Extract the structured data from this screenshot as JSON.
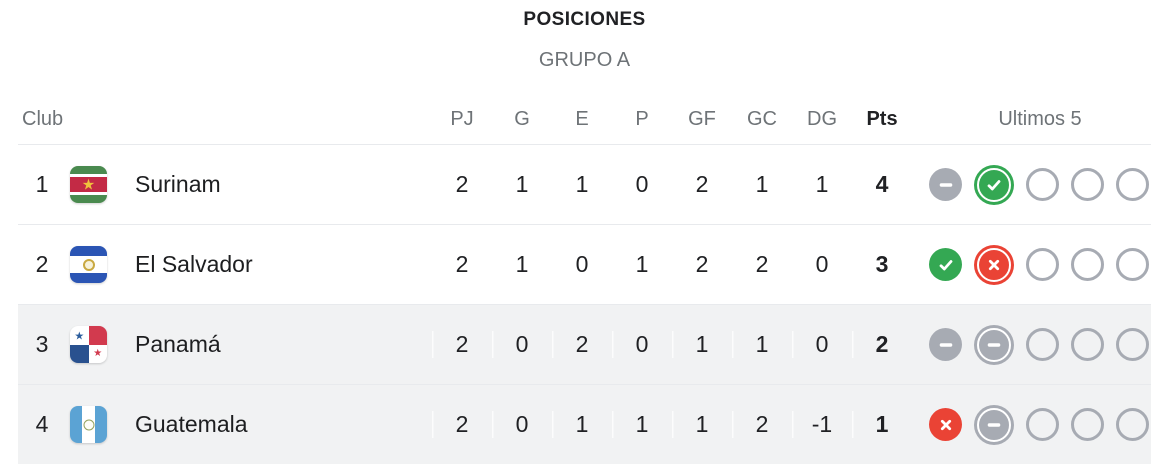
{
  "header": {
    "title": "POSICIONES",
    "subtitle": "GRUPO A"
  },
  "table": {
    "club_column_label": "Club",
    "stat_columns": [
      "PJ",
      "G",
      "E",
      "P",
      "GF",
      "GC",
      "DG",
      "Pts"
    ],
    "last5_column_label": "Ultimos 5",
    "rows": [
      {
        "rank": "1",
        "team": "Surinam",
        "flag": "suriname",
        "shaded": false,
        "stats": [
          "2",
          "1",
          "1",
          "0",
          "2",
          "1",
          "1",
          "4"
        ],
        "last5": [
          {
            "result": "draw",
            "recent": false
          },
          {
            "result": "win",
            "recent": true
          },
          {
            "result": "none",
            "recent": false
          },
          {
            "result": "none",
            "recent": false
          },
          {
            "result": "none",
            "recent": false
          }
        ]
      },
      {
        "rank": "2",
        "team": "El Salvador",
        "flag": "el-salvador",
        "shaded": false,
        "stats": [
          "2",
          "1",
          "0",
          "1",
          "2",
          "2",
          "0",
          "3"
        ],
        "last5": [
          {
            "result": "win",
            "recent": false
          },
          {
            "result": "loss",
            "recent": true
          },
          {
            "result": "none",
            "recent": false
          },
          {
            "result": "none",
            "recent": false
          },
          {
            "result": "none",
            "recent": false
          }
        ]
      },
      {
        "rank": "3",
        "team": "Panamá",
        "flag": "panama",
        "shaded": true,
        "stats": [
          "2",
          "0",
          "2",
          "0",
          "1",
          "1",
          "0",
          "2"
        ],
        "last5": [
          {
            "result": "draw",
            "recent": false
          },
          {
            "result": "draw",
            "recent": true
          },
          {
            "result": "none",
            "recent": false
          },
          {
            "result": "none",
            "recent": false
          },
          {
            "result": "none",
            "recent": false
          }
        ]
      },
      {
        "rank": "4",
        "team": "Guatemala",
        "flag": "guatemala",
        "shaded": true,
        "stats": [
          "2",
          "0",
          "1",
          "1",
          "1",
          "2",
          "-1",
          "1"
        ],
        "last5": [
          {
            "result": "loss",
            "recent": false
          },
          {
            "result": "draw",
            "recent": true
          },
          {
            "result": "none",
            "recent": false
          },
          {
            "result": "none",
            "recent": false
          },
          {
            "result": "none",
            "recent": false
          }
        ]
      }
    ]
  },
  "colors": {
    "win": "#34a853",
    "loss": "#ea4335",
    "draw": "#a7abb3",
    "upcoming_ring": "#a7abb3",
    "shaded_row": "#f1f2f3",
    "text_dark": "#202124",
    "text_gray": "#6e7377",
    "separator": "#e8eaed"
  }
}
